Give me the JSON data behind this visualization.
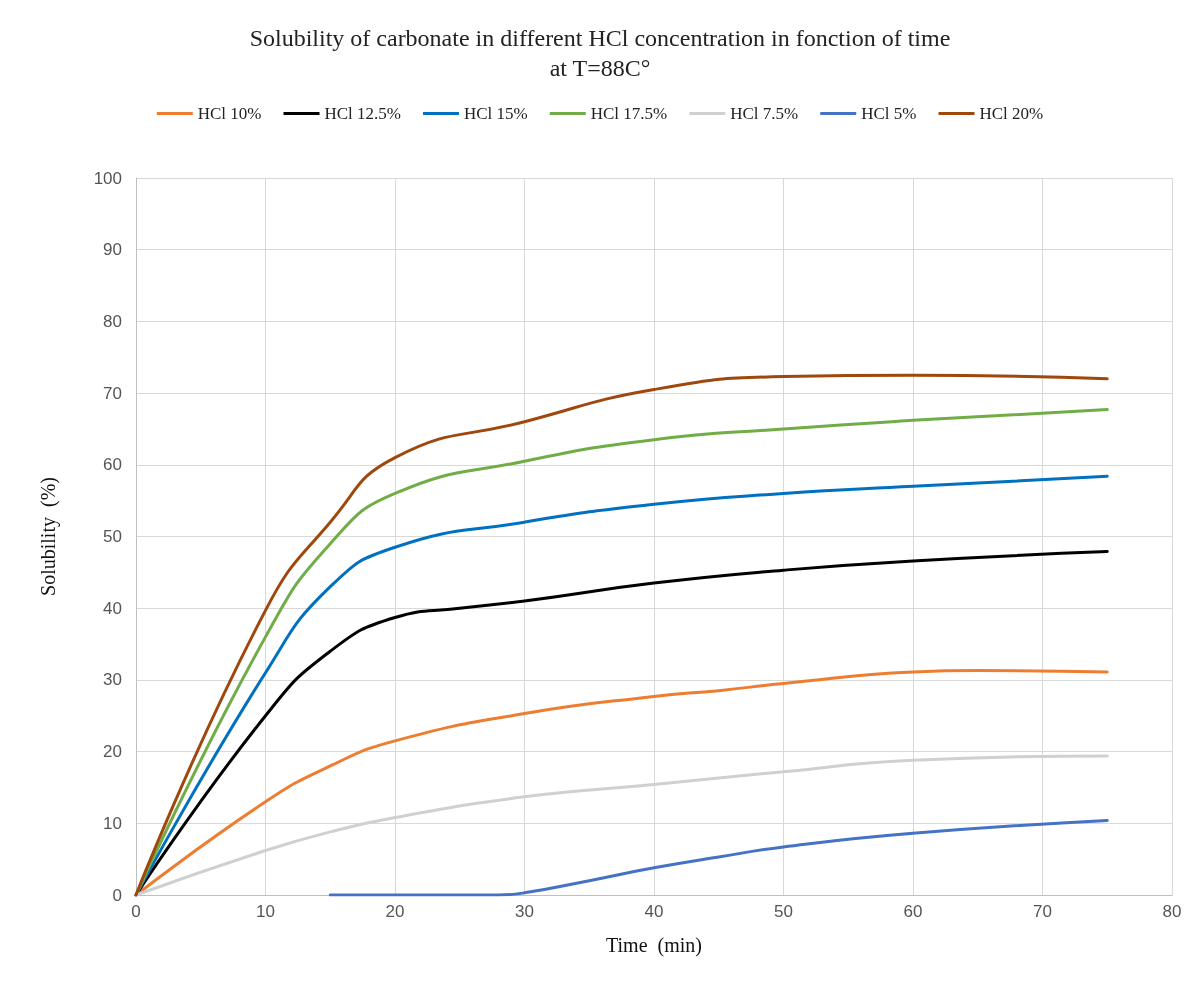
{
  "chart_data": {
    "type": "line",
    "title": "Solubility of carbonate in different HCl concentration in fonction of time\nat T=88C°",
    "xlabel": "Time  (min)",
    "ylabel": "Solubility  (%)",
    "xlim": [
      0,
      80
    ],
    "xticks": [
      0,
      10,
      20,
      30,
      40,
      50,
      60,
      70,
      80
    ],
    "ylim": [
      0,
      100
    ],
    "yticks": [
      0,
      10,
      20,
      30,
      40,
      50,
      60,
      70,
      80,
      90,
      100
    ],
    "grid": true,
    "legend": "top",
    "marker": "none",
    "line_style": "solid",
    "series": [
      {
        "name": "HCl 10%",
        "color": "#ed7d31",
        "x": [
          0,
          10,
          15,
          20,
          30,
          40,
          45,
          50,
          60,
          65,
          75
        ],
        "values": [
          0,
          13,
          18,
          21.5,
          25.3,
          27.7,
          28.5,
          29.5,
          31.1,
          31.3,
          31.1
        ]
      },
      {
        "name": "HCl 12.5%",
        "color": "#000000",
        "x": [
          0,
          10,
          15,
          20,
          25,
          30,
          40,
          50,
          60,
          75
        ],
        "values": [
          0,
          25,
          34,
          38.7,
          40,
          41,
          43.5,
          45.3,
          46.6,
          47.9
        ]
      },
      {
        "name": "HCl 15%",
        "color": "#0070c0",
        "x": [
          0,
          10,
          15,
          20,
          30,
          40,
          50,
          60,
          75
        ],
        "values": [
          0,
          31,
          43,
          48.5,
          52,
          54.5,
          56,
          57,
          58.4
        ]
      },
      {
        "name": "HCl 17.5%",
        "color": "#70ad47",
        "x": [
          0,
          10,
          15,
          20,
          30,
          40,
          50,
          60,
          75
        ],
        "values": [
          0,
          36,
          49,
          56,
          60.5,
          63.5,
          65,
          66.2,
          67.7
        ]
      },
      {
        "name": "HCl 7.5%",
        "color": "#d0d0d0",
        "x": [
          0,
          10,
          15,
          20,
          30,
          40,
          50,
          60,
          75
        ],
        "values": [
          0,
          6.2,
          8.8,
          10.8,
          13.7,
          15.4,
          17.2,
          18.8,
          19.4
        ]
      },
      {
        "name": "HCl 5%",
        "color": "#4472c4",
        "x": [
          15,
          20,
          25,
          28,
          30,
          35,
          40,
          45,
          50,
          60,
          75
        ],
        "values": [
          0,
          0,
          0,
          0,
          0.3,
          2,
          3.8,
          5.3,
          6.7,
          8.6,
          10.4
        ]
      },
      {
        "name": "HCl 20%",
        "color": "#9e480e",
        "x": [
          0,
          10,
          15,
          20,
          30,
          40,
          50,
          60,
          75
        ],
        "values": [
          0,
          39.7,
          52,
          61,
          66,
          70.5,
          72.3,
          72.5,
          72
        ]
      }
    ]
  }
}
